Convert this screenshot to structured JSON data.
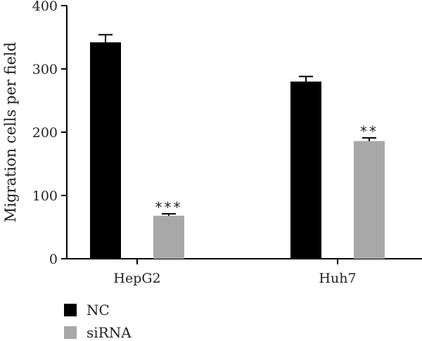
{
  "chart_data": {
    "type": "bar",
    "title": "",
    "xlabel": "",
    "ylabel": "Migration cells per field",
    "ylim": [
      0,
      400
    ],
    "yticks": [
      0,
      100,
      200,
      300,
      400
    ],
    "categories": [
      "HepG2",
      "Huh7"
    ],
    "series": [
      {
        "name": "NC",
        "color": "#000000",
        "values": [
          342,
          280
        ],
        "errors": [
          12,
          8
        ]
      },
      {
        "name": "siRNA",
        "color": "#a8a8a8",
        "values": [
          68,
          186
        ],
        "errors": [
          3,
          5
        ]
      }
    ],
    "annotations": [
      {
        "category": "HepG2",
        "series": "siRNA",
        "text": "***"
      },
      {
        "category": "Huh7",
        "series": "siRNA",
        "text": "**"
      }
    ],
    "legend_position": "bottom-left",
    "grid": false
  }
}
